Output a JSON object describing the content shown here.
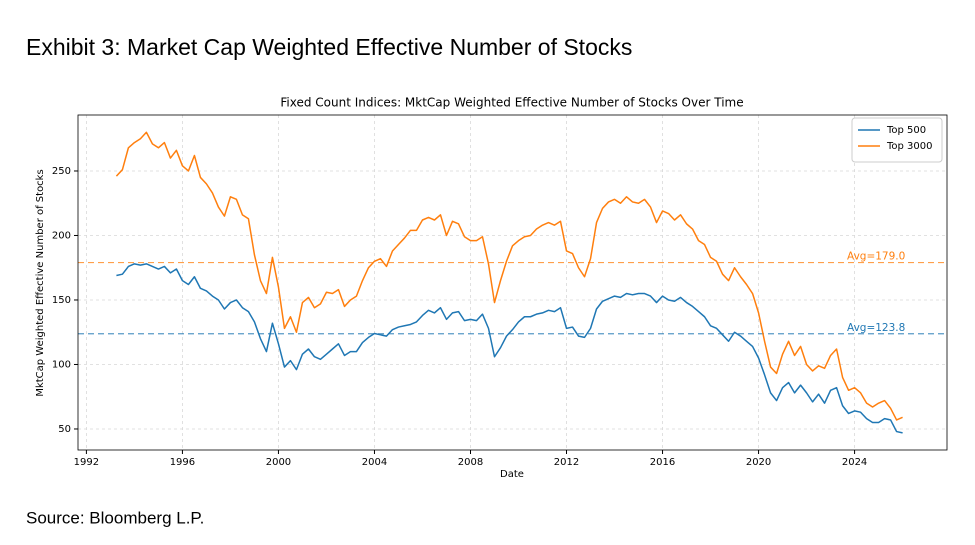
{
  "header": {
    "title": "Exhibit 3: Market Cap Weighted Effective Number of Stocks"
  },
  "footer": {
    "source": "Source: Bloomberg L.P."
  },
  "chart_data": {
    "type": "line",
    "title": "Fixed Count Indices: MktCap Weighted Effective Number of Stocks Over Time",
    "x_label": "Date",
    "y_label": "MktCap Weighted Effective Number of Stocks",
    "x": [
      1993.25,
      1993.5,
      1993.75,
      1994.0,
      1994.25,
      1994.5,
      1994.75,
      1995.0,
      1995.25,
      1995.5,
      1995.75,
      1996.0,
      1996.25,
      1996.5,
      1996.75,
      1997.0,
      1997.25,
      1997.5,
      1997.75,
      1998.0,
      1998.25,
      1998.5,
      1998.75,
      1999.0,
      1999.25,
      1999.5,
      1999.75,
      2000.0,
      2000.25,
      2000.5,
      2000.75,
      2001.0,
      2001.25,
      2001.5,
      2001.75,
      2002.0,
      2002.25,
      2002.5,
      2002.75,
      2003.0,
      2003.25,
      2003.5,
      2003.75,
      2004.0,
      2004.25,
      2004.5,
      2004.75,
      2005.0,
      2005.25,
      2005.5,
      2005.75,
      2006.0,
      2006.25,
      2006.5,
      2006.75,
      2007.0,
      2007.25,
      2007.5,
      2007.75,
      2008.0,
      2008.25,
      2008.5,
      2008.75,
      2009.0,
      2009.25,
      2009.5,
      2009.75,
      2010.0,
      2010.25,
      2010.5,
      2010.75,
      2011.0,
      2011.25,
      2011.5,
      2011.75,
      2012.0,
      2012.25,
      2012.5,
      2012.75,
      2013.0,
      2013.25,
      2013.5,
      2013.75,
      2014.0,
      2014.25,
      2014.5,
      2014.75,
      2015.0,
      2015.25,
      2015.5,
      2015.75,
      2016.0,
      2016.25,
      2016.5,
      2016.75,
      2017.0,
      2017.25,
      2017.5,
      2017.75,
      2018.0,
      2018.25,
      2018.5,
      2018.75,
      2019.0,
      2019.25,
      2019.5,
      2019.75,
      2020.0,
      2020.25,
      2020.5,
      2020.75,
      2021.0,
      2021.25,
      2021.5,
      2021.75,
      2022.0,
      2022.25,
      2022.5,
      2022.75,
      2023.0,
      2023.25,
      2023.5,
      2023.75,
      2024.0,
      2024.25,
      2024.5,
      2024.75,
      2025.0,
      2025.25,
      2025.5,
      2025.75,
      2026.0
    ],
    "series": [
      {
        "name": "Top 500",
        "color": "#1f77b4",
        "values": [
          169,
          170,
          176,
          178,
          177,
          178,
          176,
          174,
          176,
          171,
          174,
          165,
          162,
          168,
          159,
          157,
          153,
          150,
          143,
          148,
          150,
          144,
          141,
          133,
          120,
          110,
          132,
          116,
          98,
          103,
          96,
          108,
          112,
          106,
          104,
          108,
          112,
          116,
          107,
          110,
          110,
          117,
          121,
          124,
          123,
          122,
          127,
          129,
          130,
          131,
          133,
          138,
          142,
          140,
          144,
          135,
          140,
          141,
          134,
          135,
          134,
          139,
          128,
          106,
          113,
          122,
          127,
          133,
          137,
          137,
          139,
          140,
          142,
          141,
          144,
          128,
          129,
          122,
          121,
          128,
          143,
          149,
          151,
          153,
          152,
          155,
          154,
          155,
          155,
          153,
          148,
          153,
          150,
          149,
          152,
          148,
          145,
          141,
          137,
          130,
          128,
          123,
          118,
          125,
          122,
          118,
          114,
          105,
          92,
          78,
          72,
          82,
          86,
          78,
          84,
          78,
          71,
          77,
          70,
          80,
          82,
          68,
          62,
          64,
          63,
          58,
          55,
          55,
          58,
          57,
          48,
          47
        ]
      },
      {
        "name": "Top 3000",
        "color": "#ff7f0e",
        "values": [
          246,
          251,
          268,
          272,
          275,
          280,
          271,
          268,
          272,
          260,
          266,
          254,
          250,
          262,
          245,
          240,
          233,
          222,
          215,
          230,
          228,
          216,
          213,
          185,
          165,
          155,
          183,
          160,
          128,
          137,
          125,
          148,
          152,
          144,
          147,
          156,
          155,
          158,
          145,
          150,
          153,
          165,
          175,
          180,
          182,
          176,
          188,
          193,
          198,
          204,
          204,
          212,
          214,
          212,
          216,
          200,
          211,
          209,
          199,
          196,
          196,
          199,
          178,
          148,
          165,
          180,
          192,
          196,
          199,
          200,
          205,
          208,
          210,
          208,
          211,
          188,
          186,
          175,
          168,
          182,
          210,
          221,
          226,
          228,
          225,
          230,
          226,
          225,
          228,
          222,
          210,
          219,
          217,
          212,
          216,
          209,
          205,
          196,
          193,
          183,
          180,
          170,
          165,
          175,
          168,
          162,
          155,
          140,
          118,
          98,
          93,
          108,
          118,
          107,
          114,
          100,
          95,
          99,
          97,
          107,
          112,
          90,
          80,
          82,
          78,
          70,
          67,
          70,
          72,
          66,
          57,
          59
        ]
      }
    ],
    "annotations": [
      {
        "label": "Avg=179.0",
        "value": 179.0,
        "color": "#ff7f0e"
      },
      {
        "label": "Avg=123.8",
        "value": 123.8,
        "color": "#1f77b4"
      }
    ],
    "xlim": [
      1991.65,
      2027.85
    ],
    "ylim": [
      33.7,
      293.4
    ],
    "xticks": [
      1992,
      1996,
      2000,
      2004,
      2008,
      2012,
      2016,
      2020,
      2024
    ],
    "yticks": [
      50,
      100,
      150,
      200,
      250
    ],
    "grid": true,
    "legend": "upper right"
  }
}
